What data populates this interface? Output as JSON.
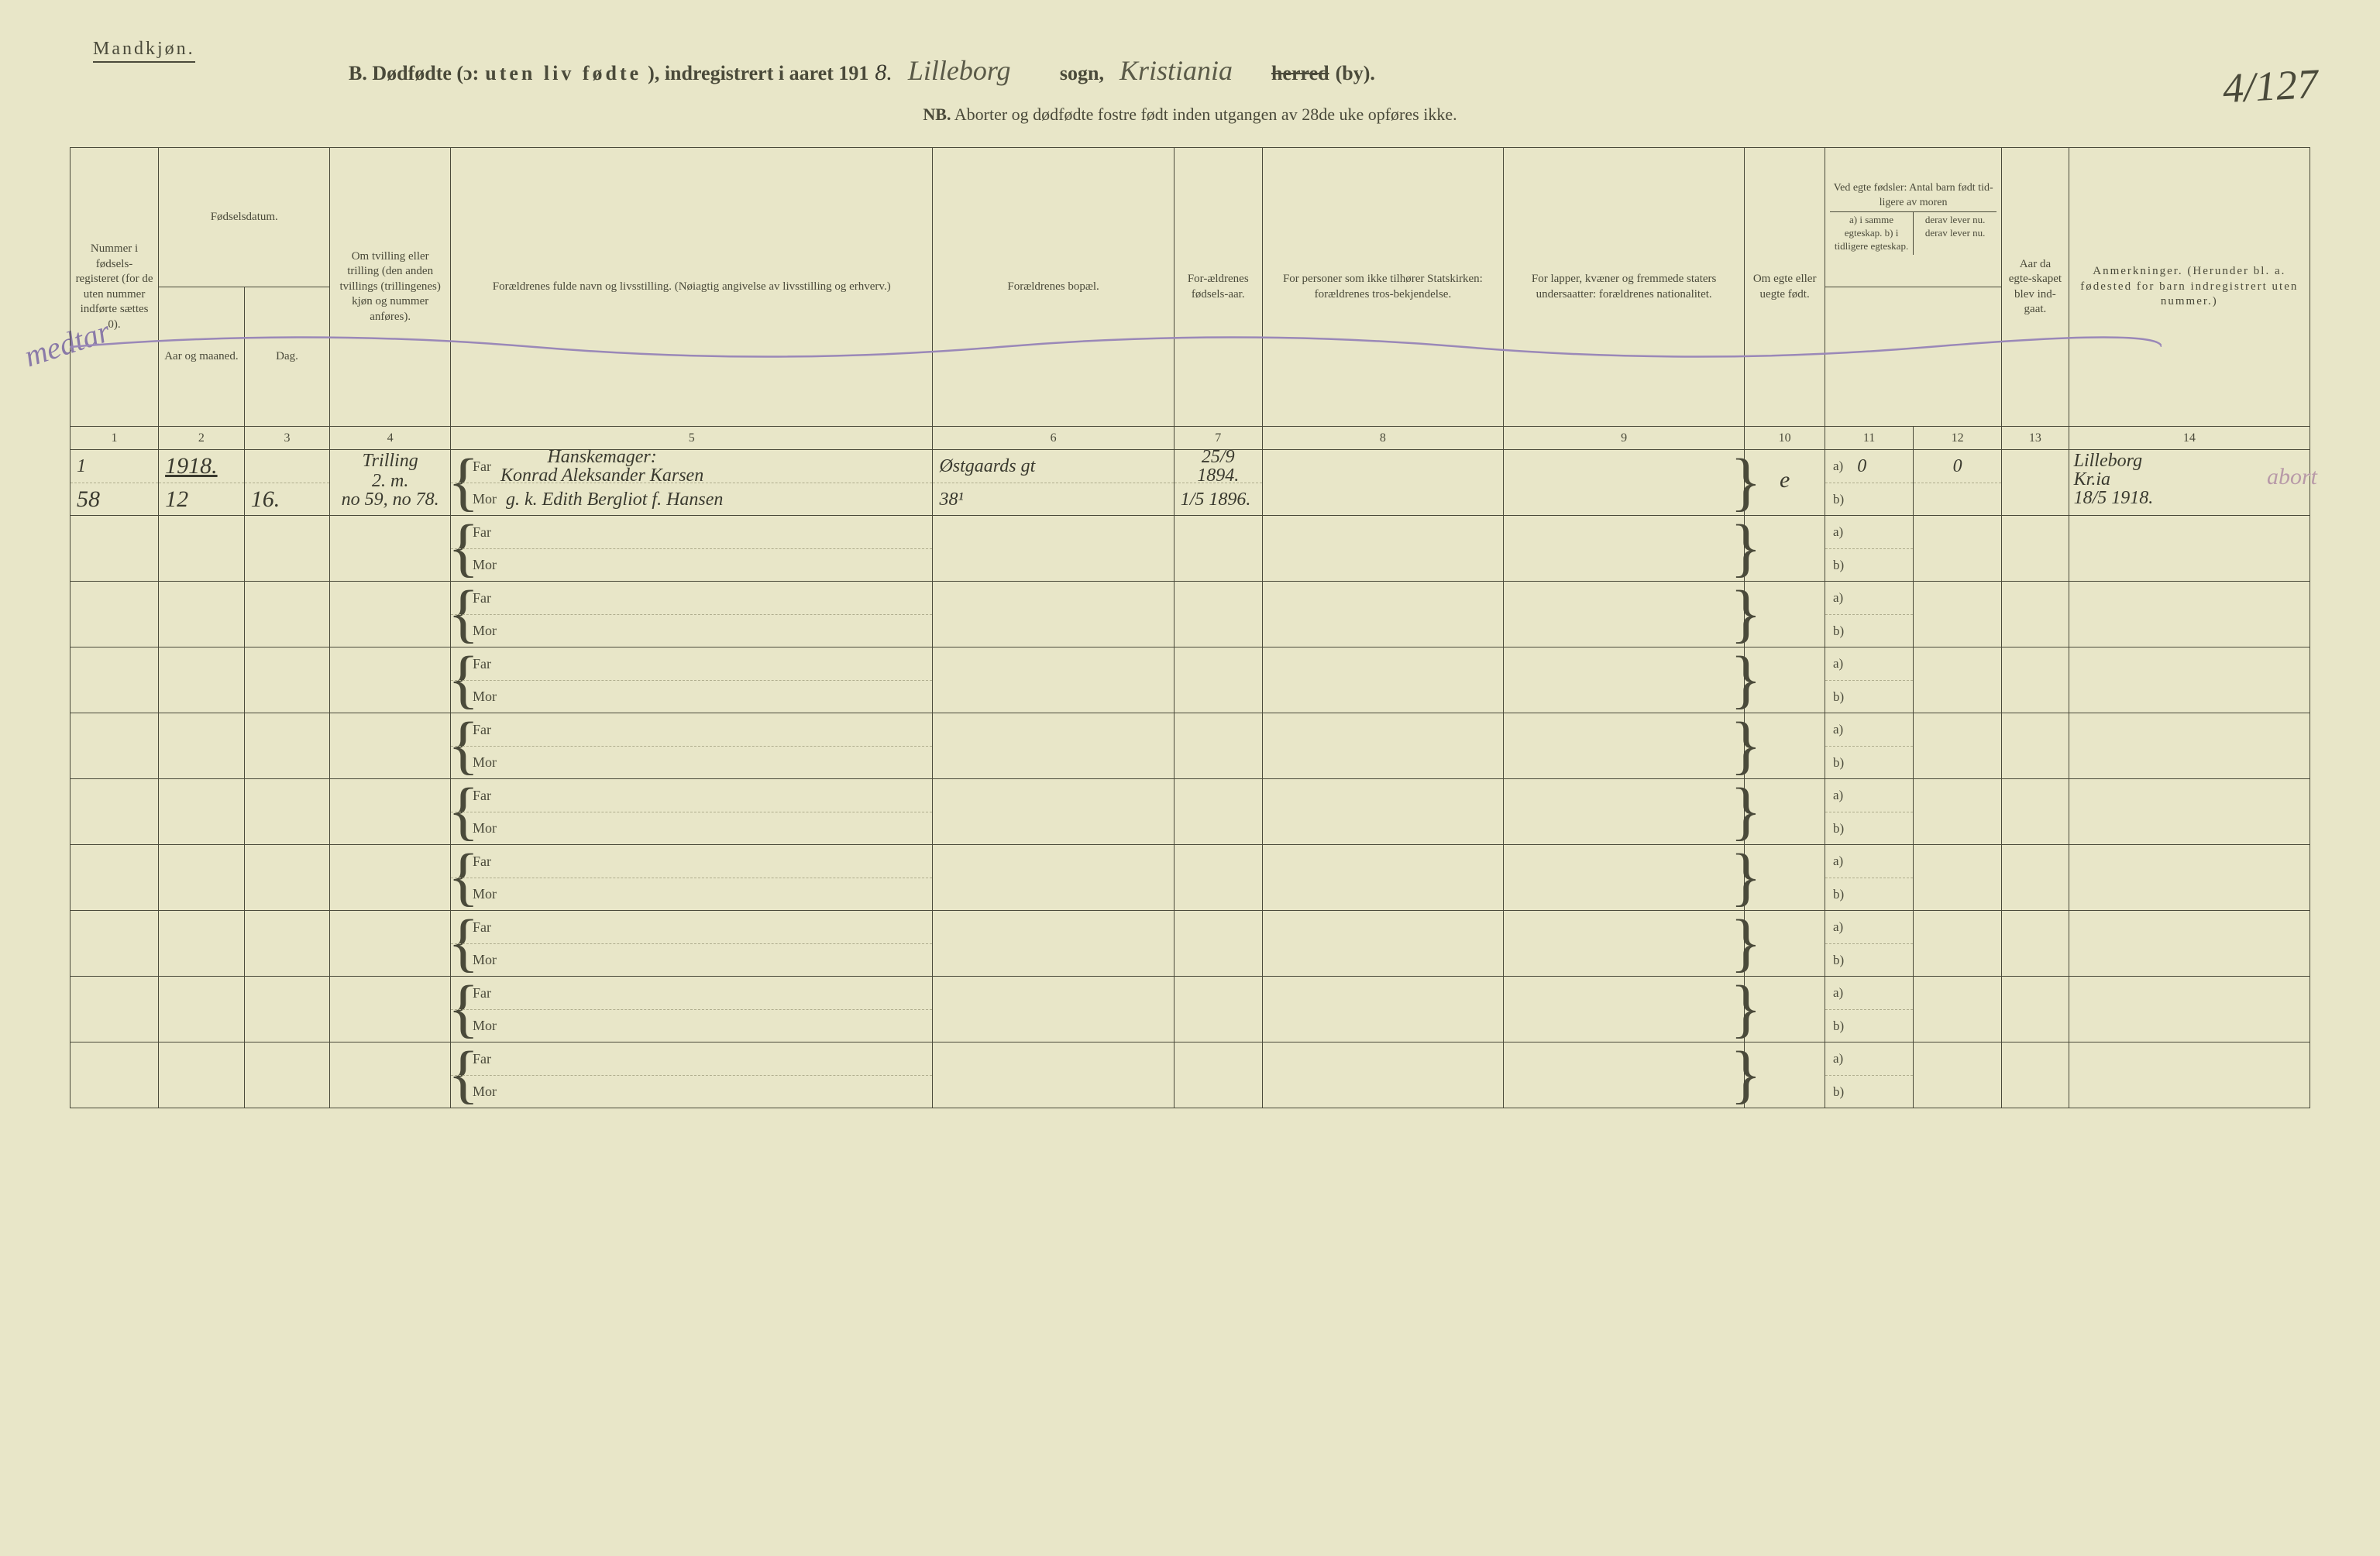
{
  "header": {
    "gender": "Mandkjøn.",
    "title_prefix": "B. Dødfødte (ɔ:",
    "title_spaced": "uten liv fødte",
    "title_suffix": "), indregistrert i aaret 191",
    "year_digit": "8.",
    "sogn_value": "Lilleborg",
    "sogn_label": "sogn,",
    "herred_value": "Kristiania",
    "herred_label_strike": "herred",
    "herred_label_by": "(by).",
    "page_number": "4/127",
    "subtitle_nb": "NB.",
    "subtitle_rest": "Aborter og dødfødte fostre født inden utgangen av 28de uke opføres ikke."
  },
  "columns": {
    "c1": "Nummer i fødsels-registeret (for de uten nummer indførte sættes 0).",
    "c2_group": "Fødselsdatum.",
    "c2": "Aar og maaned.",
    "c3": "Dag.",
    "c4": "Om tvilling eller trilling (den anden tvillings (trillingenes) kjøn og nummer anføres).",
    "c5": "Forældrenes fulde navn og livsstilling.\n(Nøiagtig angivelse av livsstilling og erhverv.)",
    "c6": "Forældrenes bopæl.",
    "c7": "For-ældrenes fødsels-aar.",
    "c8": "For personer som ikke tilhører Statskirken: forældrenes tros-bekjendelse.",
    "c9": "For lapper, kvæner og fremmede staters undersaatter: forældrenes nationalitet.",
    "c10": "Om egte eller uegte født.",
    "c11_group": "Ved egte fødsler: Antal barn født tid-ligere av moren",
    "c11": "a) i samme egteskap.\nb) i tidligere egteskap.",
    "c12": "derav lever nu.\nderav lever nu.",
    "c13": "Aar da egte-skapet blev ind-gaat.",
    "c14": "Anmerkninger.\n(Herunder bl. a. fødested for barn indregistrert uten nummer.)",
    "nums": [
      "1",
      "2",
      "3",
      "4",
      "5",
      "6",
      "7",
      "8",
      "9",
      "10",
      "11",
      "12",
      "13",
      "14"
    ]
  },
  "labels": {
    "far": "Far",
    "mor": "Mor",
    "a": "a)",
    "b": "b)"
  },
  "row1": {
    "num_top": "1",
    "num": "58",
    "year": "1918.",
    "month": "12",
    "day_top": "",
    "day": "16.",
    "twin_top": "Trilling",
    "twin_mid": "2. m.",
    "twin_bot": "no 59, no 78.",
    "far_occ": "Hanskemager:",
    "far_name": "Konrad Aleksander Karsen",
    "mor_name": "g. k. Edith Bergliot f. Hansen",
    "addr": "Østgaards gt",
    "addr2": "38¹",
    "far_birth": "25/9 1894.",
    "mor_birth": "1/5 1896.",
    "egte": "e",
    "c11a": "0",
    "c12a": "0",
    "note_top": "Lilleborg",
    "note_mid": "Kr.ia",
    "note_bot": "18/5 1918.",
    "margin": "medtar",
    "side": "abort"
  },
  "row_count": 10,
  "colors": {
    "paper": "#e8e6c8",
    "ink": "#4a4a3a",
    "hand": "#3a3a2f",
    "pencil": "#8a7aa8",
    "rule_faint": "#b0ae8f"
  }
}
